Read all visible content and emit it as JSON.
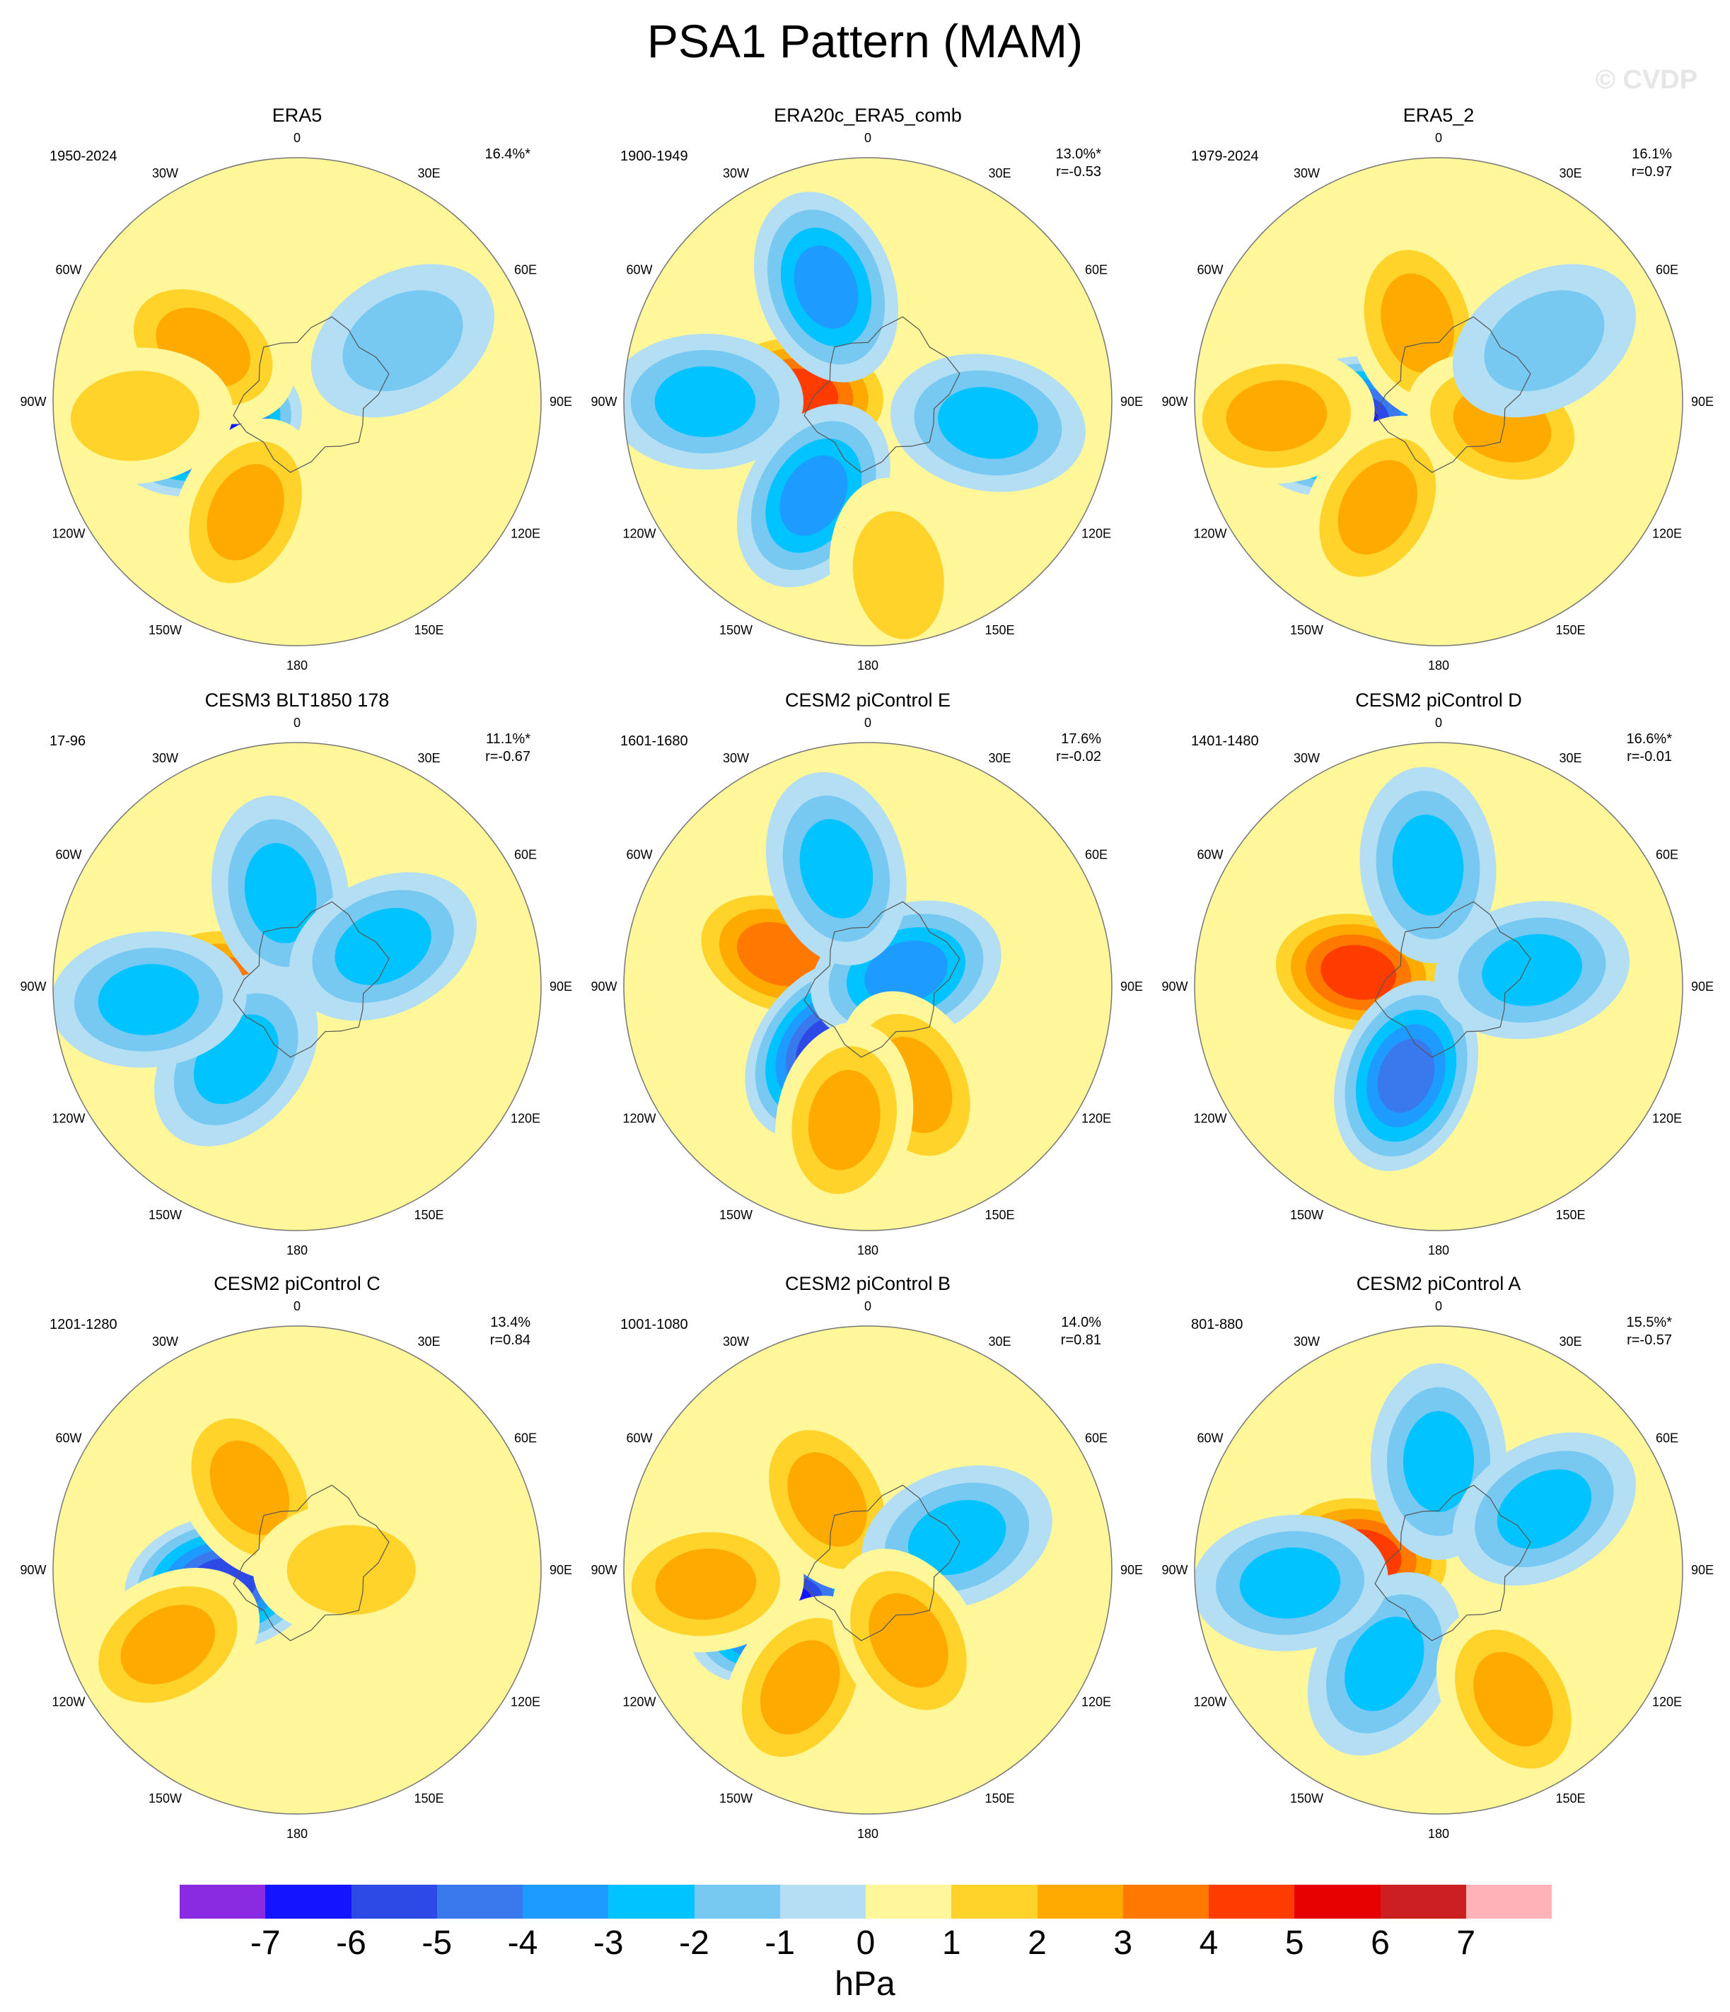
{
  "figure": {
    "title": "PSA1 Pattern (MAM)",
    "watermark": "© CVDP"
  },
  "panels": [
    {
      "name": "ERA5",
      "period": "1950-2024",
      "pct": "16.4%*",
      "r": "",
      "features": [
        {
          "lon": -105,
          "lat": -55,
          "amp": -6
        },
        {
          "lon": -60,
          "lat": -50,
          "amp": 2
        },
        {
          "lon": -155,
          "lat": -45,
          "amp": 2
        },
        {
          "lon": -95,
          "lat": -30,
          "amp": 1
        },
        {
          "lon": 60,
          "lat": -45,
          "amp": -1
        }
      ]
    },
    {
      "name": "ERA20c_ERA5_comb",
      "period": "1900-1949",
      "pct": "13.0%*",
      "r": "r=-0.53",
      "features": [
        {
          "lon": -85,
          "lat": -65,
          "amp": 4
        },
        {
          "lon": -20,
          "lat": -45,
          "amp": -3
        },
        {
          "lon": 100,
          "lat": -45,
          "amp": -2
        },
        {
          "lon": -150,
          "lat": -50,
          "amp": -3
        },
        {
          "lon": -90,
          "lat": -30,
          "amp": -2
        },
        {
          "lon": 170,
          "lat": -25,
          "amp": 1
        }
      ]
    },
    {
      "name": "ERA5_2",
      "period": "1979-2024",
      "pct": "16.1%",
      "r": "r=0.97",
      "features": [
        {
          "lon": -105,
          "lat": -55,
          "amp": -6
        },
        {
          "lon": -15,
          "lat": -60,
          "amp": 2
        },
        {
          "lon": -150,
          "lat": -45,
          "amp": 2
        },
        {
          "lon": -95,
          "lat": -30,
          "amp": 2
        },
        {
          "lon": 110,
          "lat": -65,
          "amp": 2
        },
        {
          "lon": 60,
          "lat": -45,
          "amp": -1
        }
      ]
    },
    {
      "name": "CESM3 BLT1850 178",
      "period": "17-96",
      "pct": "11.1%*",
      "r": "r=-0.67",
      "features": [
        {
          "lon": -90,
          "lat": -62,
          "amp": 3
        },
        {
          "lon": -10,
          "lat": -55,
          "amp": -2
        },
        {
          "lon": -140,
          "lat": -55,
          "amp": -2
        },
        {
          "lon": -95,
          "lat": -35,
          "amp": -2
        },
        {
          "lon": 65,
          "lat": -55,
          "amp": -2
        }
      ]
    },
    {
      "name": "CESM2 piControl E",
      "period": "1601-1680",
      "pct": "17.6%",
      "r": "r=-0.02",
      "features": [
        {
          "lon": -70,
          "lat": -55,
          "amp": 3
        },
        {
          "lon": -145,
          "lat": -62,
          "amp": -5
        },
        {
          "lon": 70,
          "lat": -75,
          "amp": -3
        },
        {
          "lon": -15,
          "lat": -45,
          "amp": -2
        },
        {
          "lon": 155,
          "lat": -50,
          "amp": 2
        },
        {
          "lon": -170,
          "lat": -40,
          "amp": 2
        }
      ]
    },
    {
      "name": "CESM2 piControl D",
      "period": "1401-1480",
      "pct": "16.6%*",
      "r": "r=-0.01",
      "features": [
        {
          "lon": -80,
          "lat": -60,
          "amp": 4
        },
        {
          "lon": -160,
          "lat": -55,
          "amp": -4
        },
        {
          "lon": 80,
          "lat": -55,
          "amp": -2
        },
        {
          "lon": -5,
          "lat": -45,
          "amp": -2
        }
      ]
    },
    {
      "name": "CESM2 piControl C",
      "period": "1201-1280",
      "pct": "13.4%",
      "r": "r=0.84",
      "features": [
        {
          "lon": -100,
          "lat": -62,
          "amp": -5
        },
        {
          "lon": -30,
          "lat": -55,
          "amp": 2
        },
        {
          "lon": -120,
          "lat": -35,
          "amp": 2
        },
        {
          "lon": 90,
          "lat": -70,
          "amp": 1
        }
      ]
    },
    {
      "name": "CESM2 piControl B",
      "period": "1001-1080",
      "pct": "14.0%",
      "r": "r=0.81",
      "features": [
        {
          "lon": -115,
          "lat": -55,
          "amp": -6
        },
        {
          "lon": -30,
          "lat": -60,
          "amp": 2
        },
        {
          "lon": -150,
          "lat": -40,
          "amp": 2
        },
        {
          "lon": -95,
          "lat": -30,
          "amp": 2
        },
        {
          "lon": 70,
          "lat": -55,
          "amp": -2
        },
        {
          "lon": 150,
          "lat": -60,
          "amp": 2
        }
      ]
    },
    {
      "name": "CESM2 piControl A",
      "period": "801-880",
      "pct": "15.5%*",
      "r": "r=-0.57",
      "features": [
        {
          "lon": -80,
          "lat": -62,
          "amp": 4
        },
        {
          "lon": 0,
          "lat": -50,
          "amp": -2
        },
        {
          "lon": 60,
          "lat": -45,
          "amp": -2
        },
        {
          "lon": -150,
          "lat": -50,
          "amp": -2
        },
        {
          "lon": -95,
          "lat": -35,
          "amp": -2
        },
        {
          "lon": 150,
          "lat": -35,
          "amp": 2
        }
      ]
    }
  ],
  "map_labels": {
    "lon_labels": [
      "0",
      "30E",
      "60E",
      "90E",
      "120E",
      "150E",
      "180",
      "150W",
      "120W",
      "90W",
      "60W",
      "30W"
    ]
  },
  "colorbar": {
    "colors": [
      "#8a2be2",
      "#1414ff",
      "#2e4ae6",
      "#3a78ee",
      "#1e9bff",
      "#00c3ff",
      "#77c9f2",
      "#b3def3",
      "#fff799",
      "#ffd32a",
      "#ffaa00",
      "#ff7800",
      "#ff3c00",
      "#e60000",
      "#cc1f22",
      "#ffb3b8"
    ],
    "ticks": [
      "-7",
      "-6",
      "-5",
      "-4",
      "-3",
      "-2",
      "-1",
      "0",
      "1",
      "2",
      "3",
      "4",
      "5",
      "6",
      "7"
    ],
    "units": "hPa"
  }
}
